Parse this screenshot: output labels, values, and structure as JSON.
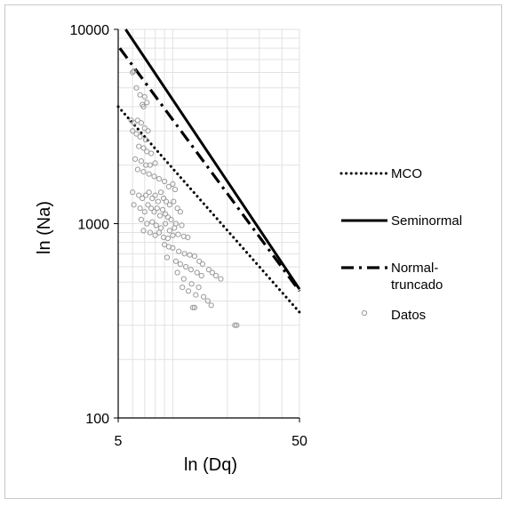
{
  "chart_data": {
    "type": "scatter",
    "title": "",
    "xlabel": "ln (Dq)",
    "ylabel": "ln (Na)",
    "x_scale": "log",
    "y_scale": "log",
    "xlim": [
      5,
      50
    ],
    "ylim": [
      100,
      10000
    ],
    "x_ticks": [
      "5",
      "50"
    ],
    "y_ticks": [
      "10000",
      "1000",
      "100"
    ],
    "grid": true,
    "legend_position": "right",
    "colors": {
      "lines": "#000000",
      "points": "#9a9a9a",
      "grid": "#e2e2e2"
    },
    "series": [
      {
        "name": "MCO",
        "kind": "line",
        "style": "dotted",
        "x": [
          5,
          50
        ],
        "y": [
          4000,
          350
        ]
      },
      {
        "name": "Seminormal",
        "kind": "line",
        "style": "solid",
        "x": [
          5.5,
          50
        ],
        "y": [
          10000,
          460
        ]
      },
      {
        "name": "Normal-\ntruncado",
        "kind": "line",
        "style": "dash-dot",
        "x": [
          5.1,
          50
        ],
        "y": [
          8000,
          450
        ]
      },
      {
        "name": "Datos",
        "kind": "scatter",
        "points": [
          [
            6.0,
            6000
          ],
          [
            6.1,
            6100
          ],
          [
            6.3,
            5000
          ],
          [
            6.6,
            4600
          ],
          [
            6.8,
            4100
          ],
          [
            7.0,
            4500
          ],
          [
            6.9,
            4000
          ],
          [
            7.2,
            4200
          ],
          [
            5.9,
            3400
          ],
          [
            6.1,
            3300
          ],
          [
            6.4,
            3400
          ],
          [
            6.7,
            3300
          ],
          [
            7.0,
            3100
          ],
          [
            7.3,
            3000
          ],
          [
            6.0,
            3000
          ],
          [
            6.3,
            2900
          ],
          [
            6.6,
            2800
          ],
          [
            7.1,
            2700
          ],
          [
            6.5,
            2500
          ],
          [
            6.9,
            2450
          ],
          [
            7.2,
            2350
          ],
          [
            7.6,
            2300
          ],
          [
            6.2,
            2150
          ],
          [
            6.7,
            2100
          ],
          [
            7.1,
            2000
          ],
          [
            7.5,
            2000
          ],
          [
            8.0,
            2050
          ],
          [
            6.4,
            1900
          ],
          [
            6.9,
            1850
          ],
          [
            7.4,
            1800
          ],
          [
            7.9,
            1750
          ],
          [
            8.4,
            1700
          ],
          [
            9.0,
            1650
          ],
          [
            9.5,
            1550
          ],
          [
            10.0,
            1600
          ],
          [
            10.3,
            1500
          ],
          [
            6.0,
            1450
          ],
          [
            6.5,
            1400
          ],
          [
            6.8,
            1350
          ],
          [
            7.1,
            1400
          ],
          [
            7.4,
            1450
          ],
          [
            7.7,
            1350
          ],
          [
            8.0,
            1400
          ],
          [
            8.3,
            1300
          ],
          [
            8.6,
            1450
          ],
          [
            8.9,
            1350
          ],
          [
            9.2,
            1300
          ],
          [
            9.6,
            1250
          ],
          [
            10.1,
            1300
          ],
          [
            10.6,
            1200
          ],
          [
            11.0,
            1150
          ],
          [
            6.1,
            1250
          ],
          [
            6.6,
            1200
          ],
          [
            7.0,
            1150
          ],
          [
            7.3,
            1250
          ],
          [
            7.6,
            1200
          ],
          [
            7.9,
            1150
          ],
          [
            8.2,
            1200
          ],
          [
            8.5,
            1100
          ],
          [
            8.8,
            1180
          ],
          [
            9.1,
            1120
          ],
          [
            9.4,
            1080
          ],
          [
            9.8,
            1050
          ],
          [
            10.4,
            1000
          ],
          [
            11.2,
            980
          ],
          [
            6.7,
            1050
          ],
          [
            7.2,
            1000
          ],
          [
            7.7,
            1020
          ],
          [
            8.1,
            980
          ],
          [
            8.6,
            950
          ],
          [
            9.1,
            1000
          ],
          [
            9.6,
            920
          ],
          [
            10.2,
            950
          ],
          [
            6.9,
            920
          ],
          [
            7.5,
            900
          ],
          [
            8.0,
            870
          ],
          [
            8.4,
            900
          ],
          [
            8.9,
            850
          ],
          [
            9.4,
            840
          ],
          [
            10.0,
            870
          ],
          [
            10.7,
            880
          ],
          [
            11.5,
            860
          ],
          [
            12.1,
            850
          ],
          [
            9.0,
            780
          ],
          [
            9.5,
            760
          ],
          [
            10.0,
            750
          ],
          [
            10.8,
            720
          ],
          [
            11.6,
            700
          ],
          [
            12.4,
            690
          ],
          [
            13.2,
            680
          ],
          [
            9.3,
            670
          ],
          [
            10.4,
            640
          ],
          [
            11.0,
            620
          ],
          [
            11.8,
            600
          ],
          [
            12.6,
            580
          ],
          [
            13.6,
            560
          ],
          [
            14.4,
            540
          ],
          [
            10.6,
            560
          ],
          [
            11.5,
            520
          ],
          [
            12.7,
            490
          ],
          [
            13.9,
            470
          ],
          [
            11.3,
            470
          ],
          [
            12.2,
            450
          ],
          [
            13.4,
            430
          ],
          [
            14.8,
            420
          ],
          [
            15.6,
            400
          ],
          [
            16.3,
            380
          ],
          [
            12.9,
            370
          ],
          [
            13.2,
            370
          ],
          [
            22.0,
            300
          ],
          [
            22.5,
            300
          ],
          [
            14.0,
            640
          ],
          [
            14.6,
            620
          ],
          [
            15.8,
            580
          ],
          [
            16.5,
            560
          ],
          [
            17.3,
            540
          ],
          [
            18.4,
            520
          ]
        ]
      }
    ]
  }
}
